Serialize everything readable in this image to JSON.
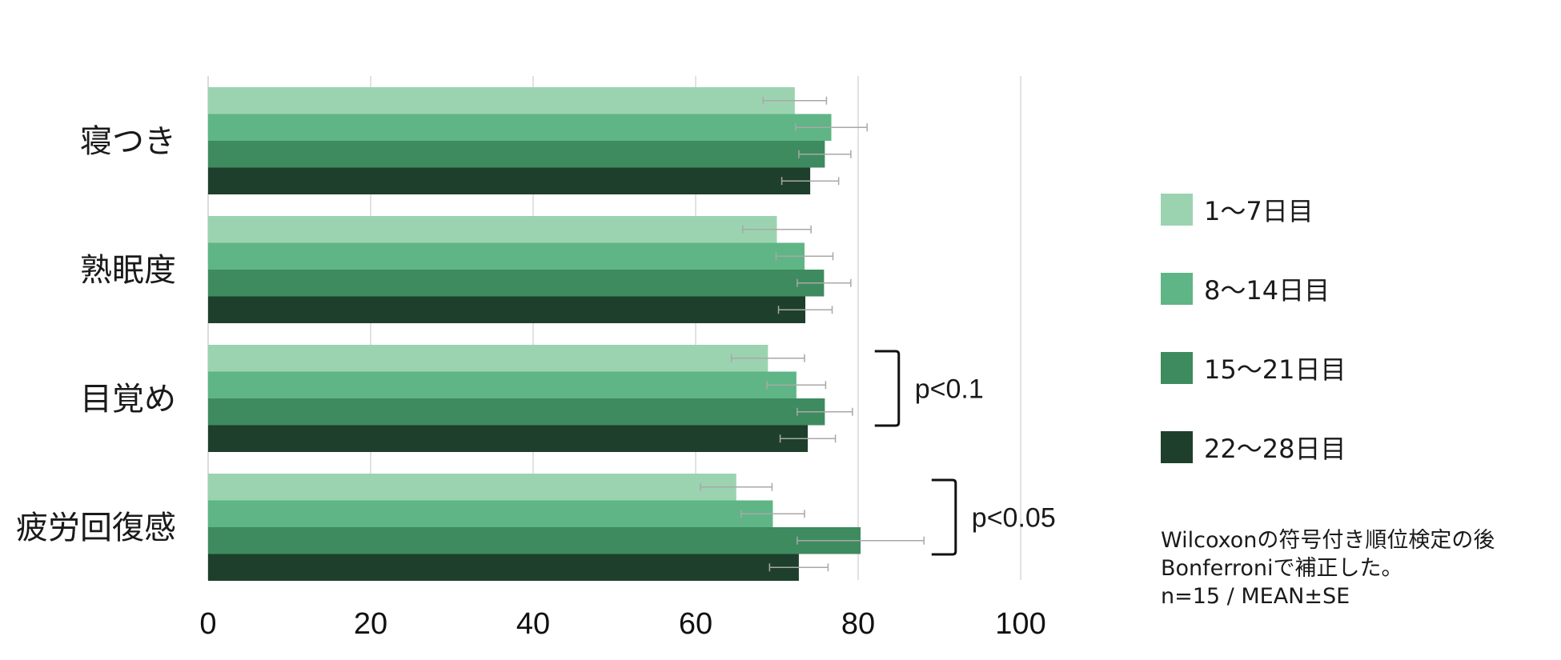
{
  "colors": {
    "series": [
      "#9bd3b1",
      "#5fb585",
      "#3e8b5f",
      "#1e3f2c"
    ],
    "grid": "#d9d9d9",
    "axis": "#cfcfcf",
    "errorbar": "#a8a8a8",
    "bracket": "#111111"
  },
  "chart_data": {
    "type": "bar",
    "orientation": "horizontal",
    "categories": [
      "寝つき",
      "熟眠度",
      "目覚め",
      "疲労回復感"
    ],
    "series": [
      {
        "name": "1〜7日目",
        "values": [
          72.2,
          70.0,
          68.9,
          65.0
        ],
        "errors": [
          3.9,
          4.2,
          4.5,
          4.4
        ]
      },
      {
        "name": "8〜14日目",
        "values": [
          76.7,
          73.4,
          72.4,
          69.5
        ],
        "errors": [
          4.4,
          3.5,
          3.6,
          3.9
        ]
      },
      {
        "name": "15〜21日目",
        "values": [
          75.9,
          75.8,
          75.9,
          80.3
        ],
        "errors": [
          3.2,
          3.3,
          3.4,
          7.8
        ]
      },
      {
        "name": "22〜28日目",
        "values": [
          74.1,
          73.5,
          73.8,
          72.7
        ],
        "errors": [
          3.5,
          3.3,
          3.4,
          3.6
        ]
      }
    ],
    "xlim": [
      0,
      100
    ],
    "xticks": [
      0,
      20,
      40,
      60,
      80,
      100
    ],
    "grid": true,
    "legend_position": "right",
    "annotations": [
      {
        "text": "p<0.1",
        "category_index": 2,
        "bracket_x": 85
      },
      {
        "text": "p<0.05",
        "category_index": 3,
        "bracket_x": 92
      }
    ]
  },
  "note": {
    "line1": "Wilcoxonの符号付き順位検定の後",
    "line2": "Bonferroniで補正した。",
    "line3": "n=15 / MEAN±SE"
  }
}
